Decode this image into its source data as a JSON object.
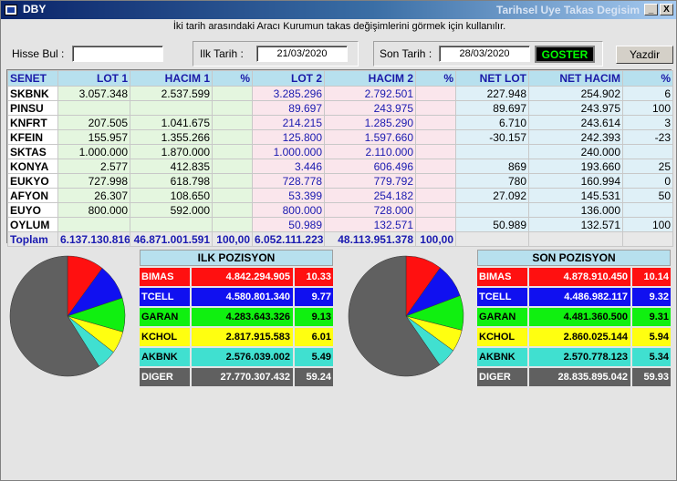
{
  "window": {
    "app_title": "DBY",
    "caption": "Tarihsel Uye Takas Degisim",
    "min_label": "_",
    "close_label": "X"
  },
  "info_text": "İki tarih arasındaki  Aracı Kurumun takas değişimlerini görmek için kullanılır.",
  "controls": {
    "hisse_label": "Hisse Bul :",
    "hisse_value": "",
    "ilk_label": "Ilk Tarih :",
    "ilk_value": "21/03/2020",
    "son_label": "Son Tarih :",
    "son_value": "28/03/2020",
    "goster_label": "GOSTER",
    "yazdir_label": "Yazdir"
  },
  "table": {
    "headers": [
      "SENET",
      "LOT 1",
      "HACIM 1",
      "%",
      "LOT 2",
      "HACIM 2",
      "%",
      "NET LOT",
      "NET HACIM",
      "%"
    ],
    "rows": [
      [
        "SKBNK",
        "3.057.348",
        "2.537.599",
        "",
        "3.285.296",
        "2.792.501",
        "",
        "227.948",
        "254.902",
        "6"
      ],
      [
        "PINSU",
        "",
        "",
        "",
        "89.697",
        "243.975",
        "",
        "89.697",
        "243.975",
        "100"
      ],
      [
        "KNFRT",
        "207.505",
        "1.041.675",
        "",
        "214.215",
        "1.285.290",
        "",
        "6.710",
        "243.614",
        "3"
      ],
      [
        "KFEIN",
        "155.957",
        "1.355.266",
        "",
        "125.800",
        "1.597.660",
        "",
        "-30.157",
        "242.393",
        "-23"
      ],
      [
        "SKTAS",
        "1.000.000",
        "1.870.000",
        "",
        "1.000.000",
        "2.110.000",
        "",
        "",
        "240.000",
        ""
      ],
      [
        "KONYA",
        "2.577",
        "412.835",
        "",
        "3.446",
        "606.496",
        "",
        "869",
        "193.660",
        "25"
      ],
      [
        "EUKYO",
        "727.998",
        "618.798",
        "",
        "728.778",
        "779.792",
        "",
        "780",
        "160.994",
        "0"
      ],
      [
        "AFYON",
        "26.307",
        "108.650",
        "",
        "53.399",
        "254.182",
        "",
        "27.092",
        "145.531",
        "50"
      ],
      [
        "EUYO",
        "800.000",
        "592.000",
        "",
        "800.000",
        "728.000",
        "",
        "",
        "136.000",
        ""
      ],
      [
        "OYLUM",
        "",
        "",
        "",
        "50.989",
        "132.571",
        "",
        "50.989",
        "132.571",
        "100"
      ]
    ],
    "total": [
      "Toplam",
      "6.137.130.816",
      "46.871.001.591",
      "100,00",
      "6.052.111.223",
      "48.113.951.378",
      "100,00",
      "",
      "",
      ""
    ]
  },
  "ilk_pozisyon": {
    "title": "ILK POZISYON",
    "rows": [
      {
        "name": "BIMAS",
        "value": "4.842.294.905",
        "pct": "10.33",
        "color": "#ff1010",
        "text": "#ffffff"
      },
      {
        "name": "TCELL",
        "value": "4.580.801.340",
        "pct": "9.77",
        "color": "#1010f0",
        "text": "#ffffff"
      },
      {
        "name": "GARAN",
        "value": "4.283.643.326",
        "pct": "9.13",
        "color": "#10f010",
        "text": "#000000"
      },
      {
        "name": "KCHOL",
        "value": "2.817.915.583",
        "pct": "6.01",
        "color": "#ffff10",
        "text": "#000000"
      },
      {
        "name": "AKBNK",
        "value": "2.576.039.002",
        "pct": "5.49",
        "color": "#40e0d0",
        "text": "#000000"
      },
      {
        "name": "DIGER",
        "value": "27.770.307.432",
        "pct": "59.24",
        "color": "#606060",
        "text": "#ffffff"
      }
    ]
  },
  "son_pozisyon": {
    "title": "SON POZISYON",
    "rows": [
      {
        "name": "BIMAS",
        "value": "4.878.910.450",
        "pct": "10.14",
        "color": "#ff1010",
        "text": "#ffffff"
      },
      {
        "name": "TCELL",
        "value": "4.486.982.117",
        "pct": "9.32",
        "color": "#1010f0",
        "text": "#ffffff"
      },
      {
        "name": "GARAN",
        "value": "4.481.360.500",
        "pct": "9.31",
        "color": "#10f010",
        "text": "#000000"
      },
      {
        "name": "KCHOL",
        "value": "2.860.025.144",
        "pct": "5.94",
        "color": "#ffff10",
        "text": "#000000"
      },
      {
        "name": "AKBNK",
        "value": "2.570.778.123",
        "pct": "5.34",
        "color": "#40e0d0",
        "text": "#000000"
      },
      {
        "name": "DIGER",
        "value": "28.835.895.042",
        "pct": "59.93",
        "color": "#606060",
        "text": "#ffffff"
      }
    ]
  },
  "chart_data": [
    {
      "type": "pie",
      "categories": [
        "BIMAS",
        "TCELL",
        "GARAN",
        "KCHOL",
        "AKBNK",
        "DIGER"
      ],
      "values": [
        10.33,
        9.77,
        9.13,
        6.01,
        5.49,
        59.24
      ],
      "colors": [
        "#ff1010",
        "#1010f0",
        "#10f010",
        "#ffff10",
        "#40e0d0",
        "#606060"
      ]
    },
    {
      "type": "pie",
      "categories": [
        "BIMAS",
        "TCELL",
        "GARAN",
        "KCHOL",
        "AKBNK",
        "DIGER"
      ],
      "values": [
        10.14,
        9.32,
        9.31,
        5.94,
        5.34,
        59.93
      ],
      "colors": [
        "#ff1010",
        "#1010f0",
        "#10f010",
        "#ffff10",
        "#40e0d0",
        "#606060"
      ]
    }
  ]
}
